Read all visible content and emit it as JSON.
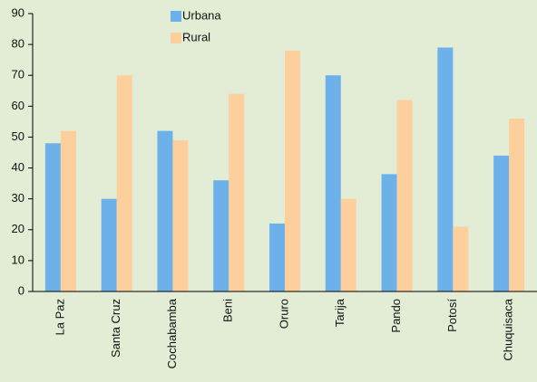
{
  "chart_data": {
    "type": "bar",
    "categories": [
      "La Paz",
      "Santa Cruz",
      "Cochabamba",
      "Beni",
      "Oruro",
      "Tarija",
      "Pando",
      "Potosí",
      "Chuquisaca"
    ],
    "series": [
      {
        "name": "Urbana",
        "color": "#6cb1e9",
        "values": [
          48,
          30,
          52,
          36,
          22,
          70,
          38,
          79,
          44
        ]
      },
      {
        "name": "Rural",
        "color": "#fdcf9c",
        "values": [
          52,
          70,
          49,
          64,
          78,
          30,
          62,
          21,
          56
        ]
      }
    ],
    "ylim": [
      0,
      90
    ],
    "yticks": [
      0,
      10,
      20,
      30,
      40,
      50,
      60,
      70,
      80,
      90
    ],
    "grid": false
  }
}
